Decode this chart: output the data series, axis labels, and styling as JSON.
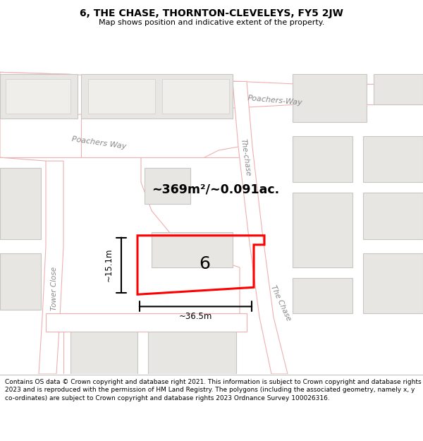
{
  "title": "6, THE CHASE, THORNTON-CLEVELEYS, FY5 2JW",
  "subtitle": "Map shows position and indicative extent of the property.",
  "footer": "Contains OS data © Crown copyright and database right 2021. This information is subject to Crown copyright and database rights 2023 and is reproduced with the permission of HM Land Registry. The polygons (including the associated geometry, namely x, y co-ordinates) are subject to Crown copyright and database rights 2023 Ordnance Survey 100026316.",
  "map_bg": "#f5f3f0",
  "road_fill": "#ffffff",
  "road_edge": "#f0b0b0",
  "building_fill": "#e8e6e3",
  "building_edge": "#c8c6c3",
  "highlight_color": "#ff0000",
  "area_text": "~369m²/~0.091ac.",
  "label_number": "6",
  "dim_width": "~36.5m",
  "dim_height": "~15.1m",
  "label_poachers1": "Poachers Way",
  "label_poachers2": "Poachers-Way",
  "label_chase1": "The-chase",
  "label_chase2": "The Chase",
  "label_tower": "Tower Close",
  "footer_fontsize": 6.5,
  "title_fontsize": 10,
  "subtitle_fontsize": 8
}
